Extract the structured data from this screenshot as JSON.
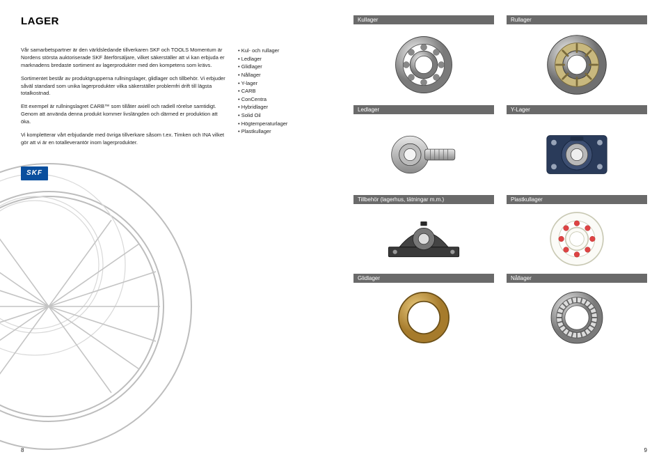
{
  "page_title": "LAGER",
  "paragraphs": {
    "p1": "Vår samarbetspartner är den världsledande tillverkaren SKF och TOOLS Momentum är Nordens största auktoriserade SKF återförsäljare, vilket säkerställer att vi kan erbjuda er marknadens bredaste sortiment av lagerprodukter med den kompetens som krävs.",
    "p2": "Sortimentet består av produktgrupperna rullningslager, glidlager och tillbehör. Vi erbjuder såväl standard som unika lagerprodukter vilka säkerställer problemfri drift till lägsta totalkostnad.",
    "p3": "Ett exempel är rullningslagret CARB™ som tillåter axiell och radiell rörelse samtidigt. Genom att använda denna produkt kommer livslängden och därmed er produktion att öka.",
    "p4": "Vi kompletterar vårt erbjudande med övriga tillverkare såsom t.ex. Timken och INA vilket gör att vi är en totalleverantör inom lagerprodukter."
  },
  "bullets": [
    "Kul- och rullager",
    "Ledlager",
    "Glidlager",
    "Nållager",
    "Y-lager",
    "CARB",
    "ConCentra",
    "Hybridlager",
    "Solid Oil",
    "Högtemperaturlager",
    "Plastkullager"
  ],
  "logo_text": "SKF",
  "page_left_num": "8",
  "page_right_num": "9",
  "products": {
    "r1c1": "Kullager",
    "r1c2": "Rullager",
    "r2c1": "Ledlager",
    "r2c2": "Y-Lager",
    "r3c1": "Tillbehör (lagerhus, tätningar m.m.)",
    "r3c2": "Plastkullager",
    "r4c1": "Glidlager",
    "r4c2": "Nållager"
  },
  "colors": {
    "label_bg": "#6a6a6a",
    "skf_blue": "#0a4f9e",
    "bg_line": "#bdbdbd",
    "bg_line2": "#d8d8d8"
  }
}
